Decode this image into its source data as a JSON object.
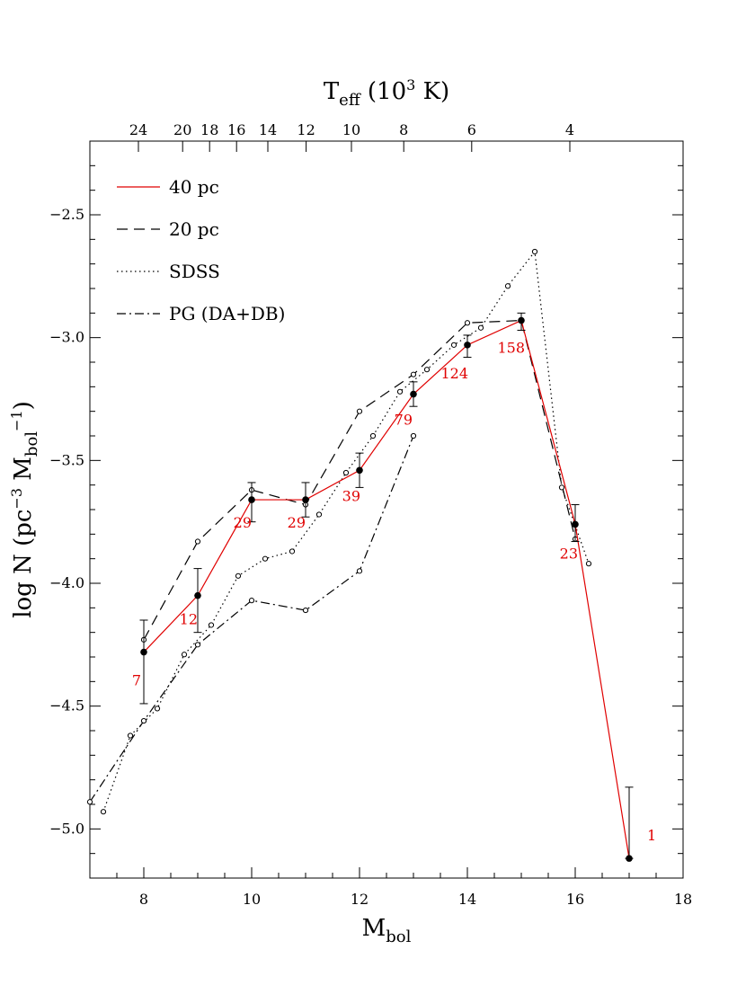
{
  "chart_data": {
    "type": "line",
    "xlabel": "M",
    "xlabel_sub": "bol",
    "ylabel_parts": [
      "log N  (pc",
      "−3",
      " M",
      "bol",
      "−1",
      ")"
    ],
    "top_label_parts": [
      "T",
      "eff",
      "  (10",
      "3",
      " K)"
    ],
    "xlim": [
      7,
      18
    ],
    "ylim": [
      -5.2,
      -2.2
    ],
    "x_ticks": [
      {
        "v": 8,
        "label": "8"
      },
      {
        "v": 10,
        "label": "10"
      },
      {
        "v": 12,
        "label": "12"
      },
      {
        "v": 14,
        "label": "14"
      },
      {
        "v": 16,
        "label": "16"
      },
      {
        "v": 18,
        "label": "18"
      }
    ],
    "y_ticks": [
      {
        "v": -2.5,
        "label": "−2.5"
      },
      {
        "v": -3.0,
        "label": "−3.0"
      },
      {
        "v": -3.5,
        "label": "−3.5"
      },
      {
        "v": -4.0,
        "label": "−4.0"
      },
      {
        "v": -4.5,
        "label": "−4.5"
      },
      {
        "v": -5.0,
        "label": "−5.0"
      }
    ],
    "top_ticks": [
      {
        "x": 7.9,
        "label": "24"
      },
      {
        "x": 8.72,
        "label": "20"
      },
      {
        "x": 9.22,
        "label": "18"
      },
      {
        "x": 9.72,
        "label": "16"
      },
      {
        "x": 10.3,
        "label": "14"
      },
      {
        "x": 11.01,
        "label": "12"
      },
      {
        "x": 11.85,
        "label": "10"
      },
      {
        "x": 12.82,
        "label": "8"
      },
      {
        "x": 14.08,
        "label": "6"
      },
      {
        "x": 15.9,
        "label": "4"
      }
    ],
    "legend": [
      {
        "label": "40 pc",
        "style": "solid",
        "color": "#e00000"
      },
      {
        "label": "20 pc",
        "style": "dashed",
        "color": "#000000"
      },
      {
        "label": "SDSS",
        "style": "dotted",
        "color": "#000000"
      },
      {
        "label": "PG (DA+DB)",
        "style": "dashdot",
        "color": "#000000"
      }
    ],
    "series": [
      {
        "name": "40 pc",
        "color": "#e00000",
        "style": "solid",
        "markers": "filled",
        "points": [
          {
            "x": 8,
            "y": -4.28,
            "err_lo": -4.49,
            "err_hi": -4.15,
            "n": "7"
          },
          {
            "x": 9,
            "y": -4.05,
            "err_lo": -4.2,
            "err_hi": -3.94,
            "n": "12"
          },
          {
            "x": 10,
            "y": -3.66,
            "err_lo": -3.75,
            "err_hi": -3.59,
            "n": "29"
          },
          {
            "x": 11,
            "y": -3.66,
            "err_lo": -3.73,
            "err_hi": -3.59,
            "n": "29"
          },
          {
            "x": 12,
            "y": -3.54,
            "err_lo": -3.61,
            "err_hi": -3.47,
            "n": "39"
          },
          {
            "x": 13,
            "y": -3.23,
            "err_lo": -3.28,
            "err_hi": -3.18,
            "n": "79"
          },
          {
            "x": 14,
            "y": -3.03,
            "err_lo": -3.08,
            "err_hi": -2.99,
            "n": "124"
          },
          {
            "x": 15,
            "y": -2.93,
            "err_lo": -2.97,
            "err_hi": -2.9,
            "n": "158"
          },
          {
            "x": 16,
            "y": -3.76,
            "err_lo": -3.83,
            "err_hi": -3.68,
            "n": "23"
          },
          {
            "x": 17,
            "y": -5.12,
            "err_lo": -5.12,
            "err_hi": -4.83,
            "n": "1"
          }
        ]
      },
      {
        "name": "20 pc",
        "color": "#000000",
        "style": "dashed",
        "markers": "open",
        "points": [
          {
            "x": 8,
            "y": -4.23
          },
          {
            "x": 9,
            "y": -3.83
          },
          {
            "x": 10,
            "y": -3.62
          },
          {
            "x": 11,
            "y": -3.68
          },
          {
            "x": 12,
            "y": -3.3
          },
          {
            "x": 13,
            "y": -3.15
          },
          {
            "x": 14,
            "y": -2.94
          },
          {
            "x": 15,
            "y": -2.93
          },
          {
            "x": 16,
            "y": -3.82
          }
        ]
      },
      {
        "name": "SDSS",
        "color": "#000000",
        "style": "dotted",
        "markers": "open",
        "points": [
          {
            "x": 7.25,
            "y": -4.93
          },
          {
            "x": 7.75,
            "y": -4.62
          },
          {
            "x": 8.25,
            "y": -4.51
          },
          {
            "x": 8.75,
            "y": -4.29
          },
          {
            "x": 9.25,
            "y": -4.17
          },
          {
            "x": 9.75,
            "y": -3.97
          },
          {
            "x": 10.25,
            "y": -3.9
          },
          {
            "x": 10.75,
            "y": -3.87
          },
          {
            "x": 11.25,
            "y": -3.72
          },
          {
            "x": 11.75,
            "y": -3.55
          },
          {
            "x": 12.25,
            "y": -3.4
          },
          {
            "x": 12.75,
            "y": -3.22
          },
          {
            "x": 13.25,
            "y": -3.13
          },
          {
            "x": 13.75,
            "y": -3.03
          },
          {
            "x": 14.25,
            "y": -2.96
          },
          {
            "x": 14.75,
            "y": -2.79
          },
          {
            "x": 15.25,
            "y": -2.65
          },
          {
            "x": 15.75,
            "y": -3.61
          },
          {
            "x": 16.25,
            "y": -3.92
          }
        ]
      },
      {
        "name": "PG (DA+DB)",
        "color": "#000000",
        "style": "dashdot",
        "markers": "open",
        "points": [
          {
            "x": 7.0,
            "y": -4.89
          },
          {
            "x": 8,
            "y": -4.56
          },
          {
            "x": 9,
            "y": -4.25
          },
          {
            "x": 10,
            "y": -4.07
          },
          {
            "x": 11,
            "y": -4.11
          },
          {
            "x": 12,
            "y": -3.95
          },
          {
            "x": 13,
            "y": -3.4
          }
        ]
      }
    ]
  }
}
